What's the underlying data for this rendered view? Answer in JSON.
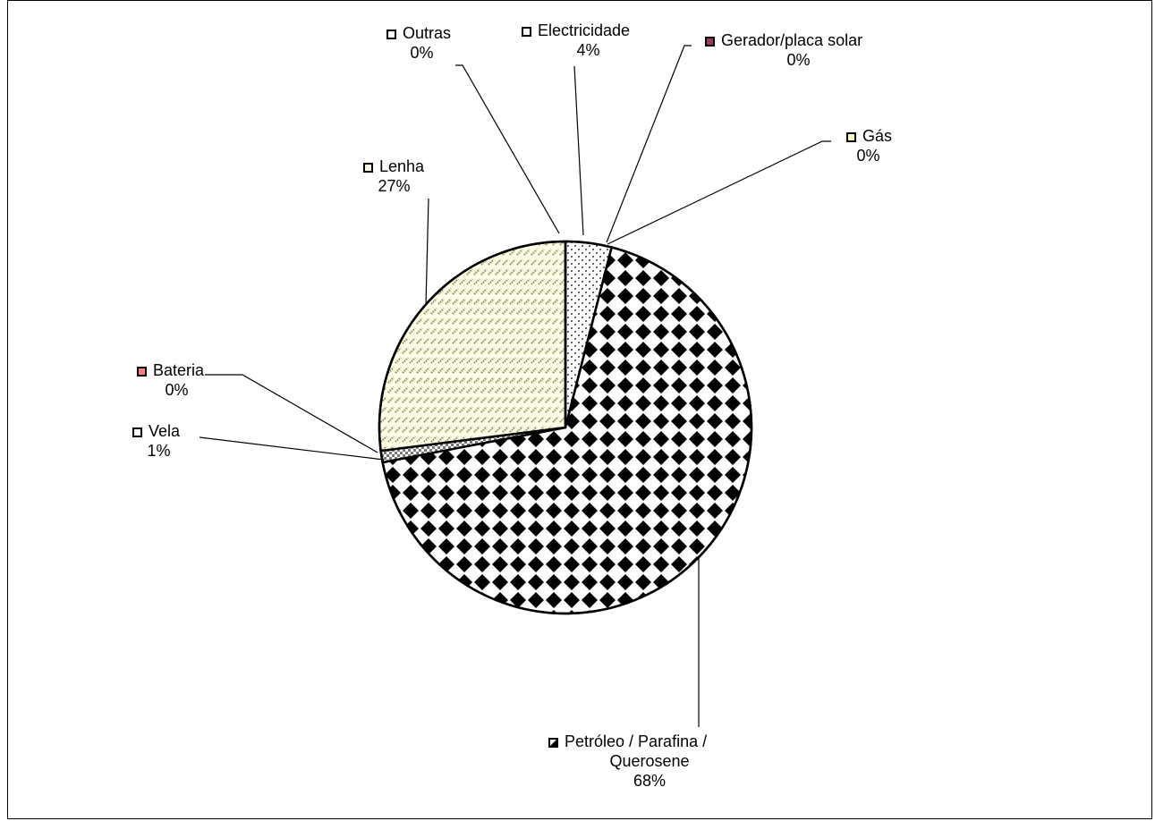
{
  "chart_data": {
    "type": "pie",
    "title": "",
    "slices": [
      {
        "name": "Electricidade",
        "value": 4,
        "label": "4%",
        "pattern": "dots"
      },
      {
        "name": "Gerador/placa solar",
        "value": 0,
        "label": "0%",
        "pattern": "solid"
      },
      {
        "name": "Gás",
        "value": 0,
        "label": "0%",
        "pattern": "solid"
      },
      {
        "name": "Petróleo / Parafina / Querosene",
        "value": 68,
        "label": "68%",
        "pattern": "diamond-check"
      },
      {
        "name": "Vela",
        "value": 1,
        "label": "1%",
        "pattern": "fine-check"
      },
      {
        "name": "Bateria",
        "value": 0,
        "label": "0%",
        "pattern": "solid"
      },
      {
        "name": "Lenha",
        "value": 27,
        "label": "27%",
        "pattern": "diagonal-hatch"
      },
      {
        "name": "Outras",
        "value": 0,
        "label": "0%",
        "pattern": "solid"
      }
    ],
    "colors": {
      "Electricidade": "#ffffff",
      "Gerador/placa solar": "#9b3a5e",
      "Gás": "#ffffcc",
      "Petróleo / Parafina / Querosene": "#000000",
      "Vela": "#ffffff",
      "Bateria": "#ff8080",
      "Lenha": "#fdfde8",
      "Outras": "#ffffff"
    },
    "lenha_hatch_color": "#8c8c5a"
  }
}
